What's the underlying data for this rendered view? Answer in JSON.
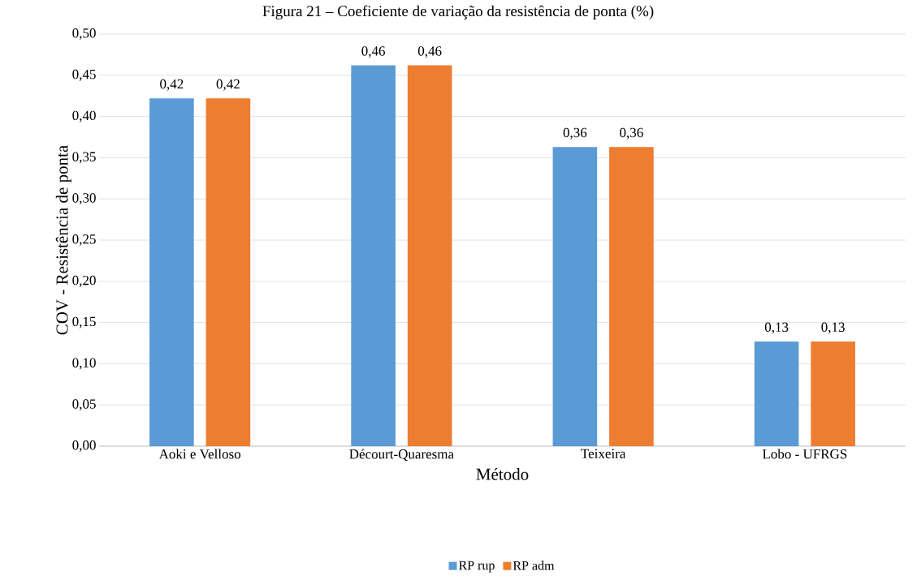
{
  "chart_data": {
    "type": "bar",
    "title": "Figura 21 – Coeficiente de variação da resistência de ponta (%)",
    "xlabel": "Método",
    "ylabel": "COV - Resistência de ponta",
    "categories": [
      "Aoki e Velloso",
      "Décourt-Quaresma",
      "Teixeira",
      "Lobo - UFRGS"
    ],
    "series": [
      {
        "name": "RP rup",
        "color": "#5b9bd5",
        "values": [
          0.422,
          0.462,
          0.363,
          0.127
        ],
        "value_labels": [
          "0,42",
          "0,46",
          "0,36",
          "0,13"
        ]
      },
      {
        "name": "RP adm",
        "color": "#ed7d31",
        "values": [
          0.422,
          0.462,
          0.363,
          0.127
        ],
        "value_labels": [
          "0,42",
          "0,46",
          "0,36",
          "0,13"
        ]
      }
    ],
    "ylim": [
      0,
      0.5
    ],
    "yticks": [
      {
        "value": 0,
        "label": "0,00"
      },
      {
        "value": 0.05,
        "label": "0,05"
      },
      {
        "value": 0.1,
        "label": "0,10"
      },
      {
        "value": 0.15,
        "label": "0,15"
      },
      {
        "value": 0.2,
        "label": "0,20"
      },
      {
        "value": 0.25,
        "label": "0,25"
      },
      {
        "value": 0.3,
        "label": "0,30"
      },
      {
        "value": 0.35,
        "label": "0,35"
      },
      {
        "value": 0.4,
        "label": "0,40"
      },
      {
        "value": 0.45,
        "label": "0,45"
      },
      {
        "value": 0.5,
        "label": "0,50"
      }
    ],
    "grid": "y",
    "legend": "bottom"
  }
}
